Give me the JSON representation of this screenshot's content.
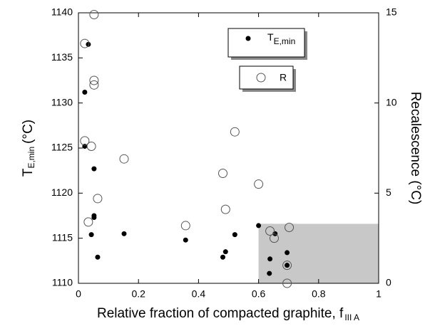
{
  "chart_data": {
    "type": "scatter",
    "xlabel": {
      "main": "Relative fraction of compacted graphite, f",
      "sub": "III A"
    },
    "ylabel": {
      "main": "T",
      "sub": "E,min",
      "unit": "(°C)"
    },
    "y2label": "Recalescence (°C)",
    "xlim": [
      0,
      1
    ],
    "xticks": [
      0,
      0.2,
      0.4,
      0.6,
      0.8,
      1
    ],
    "ylim": [
      1110,
      1140
    ],
    "yticks": [
      1110,
      1115,
      1120,
      1125,
      1130,
      1135,
      1140
    ],
    "y2lim": [
      0,
      15
    ],
    "y2ticks": [
      0,
      5,
      10,
      15
    ],
    "highlight_region": {
      "x": [
        0.6,
        1
      ],
      "y": [
        1110,
        1116.6
      ],
      "color": "#c8c8c8"
    },
    "series": [
      {
        "name": {
          "main": "T",
          "sub": "E,min"
        },
        "marker": "filled",
        "color": "#000000",
        "axis": "y",
        "x": [
          0.033,
          0.021,
          0.021,
          0.052,
          0.052,
          0.052,
          0.043,
          0.064,
          0.152,
          0.357,
          0.481,
          0.49,
          0.521,
          0.6,
          0.638,
          0.655,
          0.636,
          0.695,
          0.695
        ],
        "values": [
          1136.5,
          1131.2,
          1125.2,
          1122.7,
          1117.5,
          1117.3,
          1115.4,
          1112.9,
          1115.5,
          1114.8,
          1112.9,
          1113.5,
          1115.4,
          1116.4,
          1112.7,
          1115.5,
          1111.1,
          1113.4,
          1112
        ]
      },
      {
        "name": {
          "main": "R"
        },
        "marker": "open",
        "color": "#555555",
        "axis": "y2",
        "x": [
          0.021,
          0.052,
          0.052,
          0.052,
          0.021,
          0.043,
          0.064,
          0.033,
          0.152,
          0.357,
          0.481,
          0.49,
          0.521,
          0.6,
          0.638,
          0.702,
          0.652,
          0.695,
          0.695
        ],
        "values": [
          13.3,
          14.9,
          11.25,
          11.0,
          7.9,
          7.6,
          4.7,
          3.4,
          6.9,
          3.2,
          6.1,
          4.1,
          8.4,
          5.5,
          2.9,
          3.1,
          2.5,
          1.0,
          0.0
        ]
      }
    ]
  }
}
